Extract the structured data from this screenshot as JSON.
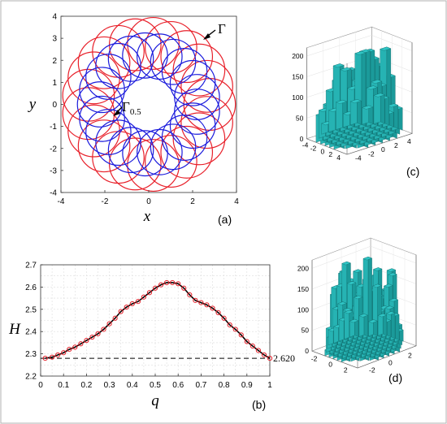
{
  "chart_data": [
    {
      "panel": "(a)",
      "type": "line",
      "xlabel": "x",
      "ylabel": "y",
      "xlim": [
        -4,
        4
      ],
      "ylim": [
        -4,
        4
      ],
      "xticks": [
        "-4",
        "-2",
        "0",
        "2",
        "4"
      ],
      "yticks": [
        "-4",
        "-3",
        "-2",
        "-1",
        "0",
        "1",
        "2",
        "3",
        "4"
      ],
      "curve_family_outer": {
        "label": "Γ",
        "color": "#e8202a",
        "inner_radius": 1.6,
        "outer_radius": 3.95,
        "loops": 21
      },
      "curve_family_inner": {
        "label": "Γ0.5",
        "label_main": "Γ",
        "label_sub": "0.5",
        "color": "#1a1adc",
        "inner_radius": 1.2,
        "outer_radius": 3.25,
        "loops": 21
      }
    },
    {
      "panel": "(b)",
      "type": "line",
      "xlabel": "q",
      "ylabel": "H",
      "xlim": [
        0,
        1
      ],
      "ylim": [
        2.2,
        2.7
      ],
      "xticks": [
        "0",
        "0.1",
        "0.2",
        "0.3",
        "0.4",
        "0.5",
        "0.6",
        "0.7",
        "0.8",
        "0.9",
        "1"
      ],
      "yticks": [
        "2.2",
        "2.3",
        "2.4",
        "2.5",
        "2.6",
        "2.7"
      ],
      "grid": true,
      "series": [
        {
          "color": "#000000",
          "marker_color": "#e8202a",
          "x": [
            0.02,
            0.05,
            0.075,
            0.1,
            0.125,
            0.15,
            0.175,
            0.2,
            0.225,
            0.25,
            0.275,
            0.3,
            0.325,
            0.35,
            0.375,
            0.4,
            0.425,
            0.45,
            0.475,
            0.5,
            0.525,
            0.55,
            0.575,
            0.6,
            0.625,
            0.65,
            0.675,
            0.7,
            0.725,
            0.75,
            0.775,
            0.8,
            0.825,
            0.85,
            0.875,
            0.9,
            0.925,
            0.95,
            0.975,
            1.0
          ],
          "y": [
            2.28,
            2.285,
            2.295,
            2.305,
            2.32,
            2.33,
            2.345,
            2.36,
            2.375,
            2.39,
            2.41,
            2.435,
            2.46,
            2.49,
            2.51,
            2.525,
            2.535,
            2.555,
            2.575,
            2.595,
            2.61,
            2.62,
            2.62,
            2.615,
            2.595,
            2.565,
            2.54,
            2.53,
            2.52,
            2.505,
            2.485,
            2.46,
            2.43,
            2.41,
            2.385,
            2.355,
            2.335,
            2.315,
            2.295,
            2.28
          ]
        }
      ],
      "reference_line": {
        "y": 2.28,
        "style": "dashed",
        "label": "2.620"
      }
    },
    {
      "panel": "(c)",
      "type": "bar3d",
      "zticks": [
        "0",
        "50",
        "100",
        "150",
        "200"
      ],
      "xticks": [
        "-4",
        "-2",
        "0",
        "2",
        "4"
      ],
      "yticks": [
        "-4",
        "-2",
        "0",
        "2",
        "4"
      ],
      "bar_color": "#2fc4c4"
    },
    {
      "panel": "(d)",
      "type": "bar3d",
      "zticks": [
        "0",
        "50",
        "100",
        "150",
        "200"
      ],
      "xticks": [
        "-2",
        "0",
        "2"
      ],
      "yticks": [
        "-2",
        "0",
        "2"
      ],
      "bar_color": "#2fc4c4"
    }
  ],
  "labels": {
    "a": "(a)",
    "b": "(b)",
    "c": "(c)",
    "d": "(d)"
  }
}
